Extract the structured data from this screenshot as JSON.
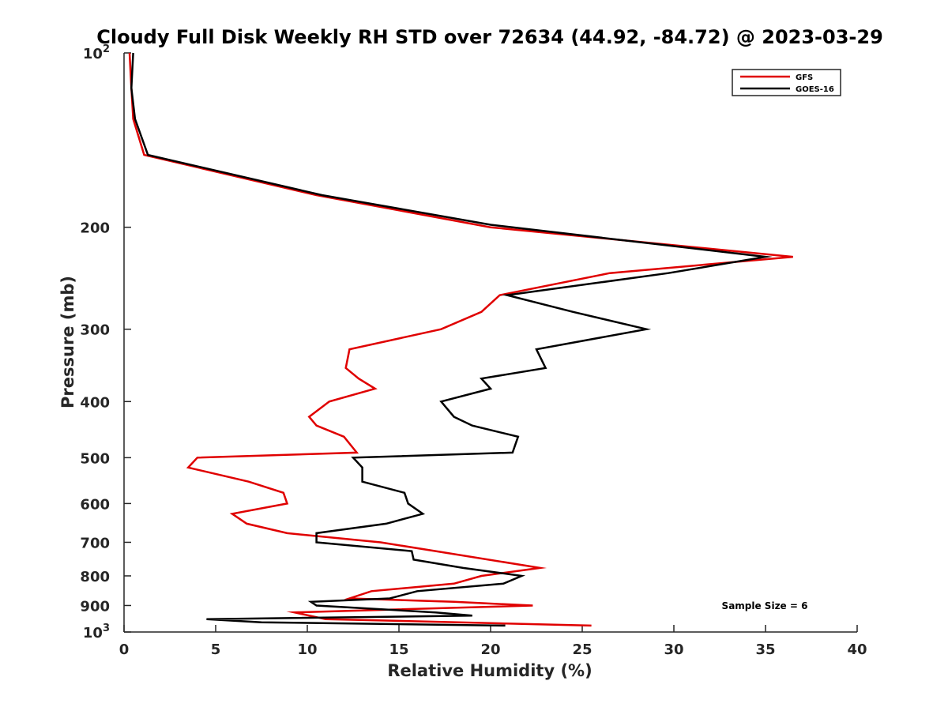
{
  "chart_data": {
    "type": "line",
    "title": "Cloudy Full Disk Weekly RH STD over 72634 (44.92, -84.72) @ 2023-03-29",
    "xlabel": "Relative Humidity (%)",
    "ylabel": "Pressure (mb)",
    "xlim": [
      0,
      40
    ],
    "ylim": [
      100,
      1000
    ],
    "y_scale": "log",
    "y_reversed": true,
    "grid": false,
    "legend_position": "top-right",
    "x_ticks": [
      "0",
      "5",
      "10",
      "15",
      "20",
      "25",
      "30",
      "35",
      "40"
    ],
    "y_ticks": [
      {
        "value": 100,
        "base": "10",
        "exp": "2"
      },
      {
        "value": 200,
        "base": "200",
        "exp": ""
      },
      {
        "value": 300,
        "base": "300",
        "exp": ""
      },
      {
        "value": 400,
        "base": "400",
        "exp": ""
      },
      {
        "value": 500,
        "base": "500",
        "exp": ""
      },
      {
        "value": 600,
        "base": "600",
        "exp": ""
      },
      {
        "value": 700,
        "base": "700",
        "exp": ""
      },
      {
        "value": 800,
        "base": "800",
        "exp": ""
      },
      {
        "value": 900,
        "base": "900",
        "exp": ""
      },
      {
        "value": 1000,
        "base": "10",
        "exp": "3"
      }
    ],
    "series": [
      {
        "name": "GFS",
        "color": "#e00000",
        "points": [
          [
            0.3,
            100
          ],
          [
            0.4,
            115
          ],
          [
            0.5,
            130
          ],
          [
            1.1,
            150
          ],
          [
            10.5,
            176
          ],
          [
            20.0,
            200
          ],
          [
            36.5,
            225
          ],
          [
            26.5,
            240
          ],
          [
            20.5,
            262
          ],
          [
            19.5,
            280
          ],
          [
            17.3,
            300
          ],
          [
            12.3,
            325
          ],
          [
            12.1,
            350
          ],
          [
            12.8,
            365
          ],
          [
            13.7,
            380
          ],
          [
            11.2,
            400
          ],
          [
            10.1,
            425
          ],
          [
            10.5,
            440
          ],
          [
            12.0,
            460
          ],
          [
            12.7,
            490
          ],
          [
            4.0,
            500
          ],
          [
            3.5,
            520
          ],
          [
            6.8,
            550
          ],
          [
            8.7,
            575
          ],
          [
            8.9,
            600
          ],
          [
            5.9,
            625
          ],
          [
            6.7,
            650
          ],
          [
            8.9,
            675
          ],
          [
            14.0,
            700
          ],
          [
            17.0,
            725
          ],
          [
            22.7,
            775
          ],
          [
            19.5,
            800
          ],
          [
            18.0,
            825
          ],
          [
            13.5,
            850
          ],
          [
            12.3,
            875
          ],
          [
            18.0,
            887
          ],
          [
            22.3,
            900
          ],
          [
            9.3,
            925
          ],
          [
            11.0,
            950
          ],
          [
            25.5,
            975
          ]
        ]
      },
      {
        "name": "GOES-16",
        "color": "#000000",
        "points": [
          [
            0.5,
            100
          ],
          [
            0.4,
            115
          ],
          [
            0.6,
            130
          ],
          [
            1.3,
            150
          ],
          [
            10.8,
            176
          ],
          [
            20.0,
            198
          ],
          [
            35.0,
            225
          ],
          [
            29.7,
            240
          ],
          [
            20.9,
            262
          ],
          [
            24.5,
            280
          ],
          [
            28.5,
            300
          ],
          [
            22.5,
            325
          ],
          [
            23.0,
            350
          ],
          [
            19.5,
            365
          ],
          [
            20.0,
            380
          ],
          [
            17.3,
            400
          ],
          [
            18.0,
            425
          ],
          [
            19.0,
            440
          ],
          [
            21.5,
            460
          ],
          [
            21.2,
            490
          ],
          [
            12.5,
            500
          ],
          [
            13.0,
            520
          ],
          [
            13.0,
            550
          ],
          [
            15.3,
            575
          ],
          [
            15.5,
            600
          ],
          [
            16.3,
            625
          ],
          [
            14.3,
            650
          ],
          [
            10.5,
            675
          ],
          [
            10.5,
            700
          ],
          [
            15.7,
            725
          ],
          [
            15.8,
            750
          ],
          [
            18.5,
            775
          ],
          [
            21.7,
            800
          ],
          [
            20.7,
            825
          ],
          [
            16.0,
            850
          ],
          [
            14.5,
            875
          ],
          [
            10.2,
            887
          ],
          [
            10.5,
            900
          ],
          [
            17.0,
            925
          ],
          [
            19.0,
            937
          ],
          [
            4.5,
            950
          ],
          [
            7.5,
            962
          ],
          [
            20.8,
            975
          ]
        ]
      }
    ],
    "annotations": [
      "Sample Size = 6"
    ]
  }
}
